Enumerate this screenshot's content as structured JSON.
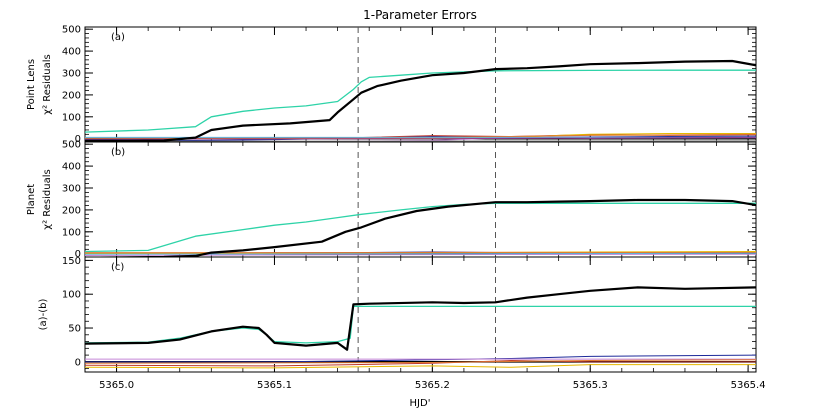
{
  "figure": {
    "title": "1-Parameter Errors",
    "xlabel": "HJD'",
    "x_ticks": [
      "5365.0",
      "5365.1",
      "5365.2",
      "5365.3",
      "5365.4"
    ],
    "x_tick_values": [
      5365.0,
      5365.1,
      5365.2,
      5365.3,
      5365.4
    ],
    "xlim": [
      5364.98,
      5365.405
    ],
    "vlines": [
      5365.153,
      5365.24
    ],
    "colors": {
      "chi2_total": "#000000",
      "chi2_reference": "#2ed3a8",
      "minor_series": [
        "#1d2a9a",
        "#c0392b",
        "#e6b800",
        "#c586d6",
        "#e07a30",
        "#5fb0d8",
        "#8e3a8e",
        "#7a7a7a"
      ]
    }
  },
  "chart_data": [
    {
      "type": "line",
      "panel": "(a)",
      "ylabel_line1": "Point Lens",
      "ylabel_line2": "χ² Residuals",
      "ylim": [
        -15,
        510
      ],
      "yticks": [
        0,
        100,
        200,
        300,
        400,
        500
      ],
      "ytick_labels": [
        "0",
        "100",
        "200",
        "300",
        "400",
        "500"
      ],
      "minor_ytick_step": 20,
      "series": [
        {
          "role": "chi2_reference",
          "x": [
            5364.98,
            5365.02,
            5365.05,
            5365.06,
            5365.08,
            5365.1,
            5365.12,
            5365.14,
            5365.15,
            5365.155,
            5365.16,
            5365.18,
            5365.2,
            5365.22,
            5365.24,
            5365.3,
            5365.35,
            5365.405
          ],
          "y": [
            30,
            40,
            55,
            100,
            125,
            140,
            150,
            170,
            225,
            260,
            280,
            290,
            300,
            305,
            310,
            312,
            313,
            313
          ]
        },
        {
          "role": "chi2_total",
          "x": [
            5364.98,
            5365.03,
            5365.05,
            5365.06,
            5365.08,
            5365.11,
            5365.135,
            5365.14,
            5365.15,
            5365.155,
            5365.165,
            5365.18,
            5365.2,
            5365.22,
            5365.24,
            5365.26,
            5365.28,
            5365.3,
            5365.33,
            5365.36,
            5365.39,
            5365.405
          ],
          "y": [
            -10,
            -8,
            5,
            40,
            60,
            70,
            85,
            120,
            180,
            210,
            240,
            265,
            290,
            300,
            318,
            322,
            330,
            340,
            345,
            352,
            355,
            335
          ]
        },
        {
          "role": "minor",
          "x": [
            5364.98,
            5365.05,
            5365.1,
            5365.15,
            5365.2,
            5365.25,
            5365.3,
            5365.35,
            5365.405
          ],
          "y": [
            -5,
            -8,
            -4,
            2,
            10,
            5,
            8,
            10,
            12
          ]
        },
        {
          "role": "minor",
          "x": [
            5364.98,
            5365.05,
            5365.1,
            5365.15,
            5365.2,
            5365.25,
            5365.3,
            5365.35,
            5365.405
          ],
          "y": [
            0,
            1,
            2,
            4,
            14,
            10,
            18,
            15,
            18
          ]
        },
        {
          "role": "minor",
          "x": [
            5364.98,
            5365.1,
            5365.2,
            5365.25,
            5365.28,
            5365.3,
            5365.35,
            5365.405
          ],
          "y": [
            0,
            0,
            2,
            4,
            15,
            20,
            24,
            24
          ]
        },
        {
          "role": "minor",
          "x": [
            5364.98,
            5365.1,
            5365.15,
            5365.2,
            5365.25,
            5365.3,
            5365.405
          ],
          "y": [
            -15,
            -15,
            -12,
            -8,
            5,
            2,
            4
          ]
        },
        {
          "role": "minor",
          "x": [
            5364.98,
            5365.1,
            5365.2,
            5365.25,
            5365.3,
            5365.405
          ],
          "y": [
            0,
            0,
            5,
            10,
            15,
            20
          ]
        },
        {
          "role": "minor",
          "x": [
            5364.98,
            5365.405
          ],
          "y": [
            6,
            6
          ]
        },
        {
          "role": "minor",
          "x": [
            5364.98,
            5365.2,
            5365.3,
            5365.405
          ],
          "y": [
            -2,
            0,
            3,
            6
          ]
        },
        {
          "role": "minor",
          "x": [
            5364.98,
            5365.405
          ],
          "y": [
            -12,
            -10
          ]
        }
      ]
    },
    {
      "type": "line",
      "panel": "(b)",
      "ylabel_line1": "Planet",
      "ylabel_line2": "χ² Residuals",
      "ylim": [
        -15,
        510
      ],
      "yticks": [
        0,
        100,
        200,
        300,
        400,
        500
      ],
      "ytick_labels": [
        "0",
        "100",
        "200",
        "300",
        "400",
        "500"
      ],
      "minor_ytick_step": 20,
      "series": [
        {
          "role": "chi2_reference",
          "x": [
            5364.98,
            5365.02,
            5365.05,
            5365.08,
            5365.1,
            5365.12,
            5365.14,
            5365.155,
            5365.18,
            5365.2,
            5365.22,
            5365.24,
            5365.3,
            5365.405
          ],
          "y": [
            10,
            15,
            80,
            110,
            130,
            145,
            165,
            180,
            200,
            215,
            225,
            230,
            230,
            230
          ]
        },
        {
          "role": "chi2_total",
          "x": [
            5364.98,
            5365.03,
            5365.05,
            5365.06,
            5365.08,
            5365.1,
            5365.13,
            5365.145,
            5365.155,
            5365.17,
            5365.19,
            5365.21,
            5365.24,
            5365.26,
            5365.28,
            5365.3,
            5365.33,
            5365.36,
            5365.39,
            5365.405
          ],
          "y": [
            -18,
            -15,
            -10,
            5,
            15,
            30,
            55,
            100,
            120,
            160,
            195,
            215,
            235,
            235,
            238,
            240,
            245,
            245,
            240,
            222
          ]
        },
        {
          "role": "minor",
          "x": [
            5364.98,
            5365.05,
            5365.1,
            5365.15,
            5365.2,
            5365.25,
            5365.3,
            5365.405
          ],
          "y": [
            0,
            2,
            4,
            5,
            8,
            5,
            3,
            4
          ]
        },
        {
          "role": "minor",
          "x": [
            5364.98,
            5365.1,
            5365.2,
            5365.3,
            5365.405
          ],
          "y": [
            0,
            2,
            6,
            6,
            8
          ]
        },
        {
          "role": "minor",
          "x": [
            5364.98,
            5365.2,
            5365.3,
            5365.405
          ],
          "y": [
            2,
            4,
            8,
            10
          ]
        },
        {
          "role": "minor",
          "x": [
            5364.98,
            5365.1,
            5365.2,
            5365.405
          ],
          "y": [
            -8,
            -6,
            -4,
            -2
          ]
        },
        {
          "role": "minor",
          "x": [
            5364.98,
            5365.405
          ],
          "y": [
            5,
            5
          ]
        },
        {
          "role": "minor",
          "x": [
            5364.98,
            5365.2,
            5365.405
          ],
          "y": [
            -2,
            0,
            2
          ]
        }
      ]
    },
    {
      "type": "line",
      "panel": "(c)",
      "ylabel_line1": "(a)-(b)",
      "ylabel_line2": "",
      "ylim": [
        -15,
        155
      ],
      "yticks": [
        0,
        50,
        100,
        150
      ],
      "ytick_labels": [
        "0",
        "50",
        "100",
        "150"
      ],
      "minor_ytick_step": 10,
      "series": [
        {
          "role": "chi2_reference",
          "x": [
            5364.98,
            5365.02,
            5365.04,
            5365.06,
            5365.08,
            5365.09,
            5365.095,
            5365.1,
            5365.12,
            5365.14,
            5365.148,
            5365.15,
            5365.405
          ],
          "y": [
            28,
            29,
            35,
            45,
            50,
            48,
            40,
            30,
            28,
            30,
            35,
            82,
            82
          ]
        },
        {
          "role": "chi2_total",
          "x": [
            5364.98,
            5365.02,
            5365.04,
            5365.06,
            5365.08,
            5365.09,
            5365.095,
            5365.1,
            5365.12,
            5365.14,
            5365.146,
            5365.15,
            5365.16,
            5365.2,
            5365.22,
            5365.24,
            5365.26,
            5365.28,
            5365.3,
            5365.33,
            5365.36,
            5365.405
          ],
          "y": [
            27,
            28,
            33,
            45,
            52,
            50,
            40,
            28,
            24,
            28,
            18,
            85,
            86,
            88,
            87,
            88,
            95,
            100,
            105,
            110,
            108,
            110
          ]
        },
        {
          "role": "minor",
          "x": [
            5364.98,
            5365.1,
            5365.2,
            5365.25,
            5365.3,
            5365.405
          ],
          "y": [
            0,
            0,
            3,
            5,
            8,
            10
          ]
        },
        {
          "role": "minor",
          "x": [
            5364.98,
            5365.1,
            5365.15,
            5365.2,
            5365.25,
            5365.3,
            5365.405
          ],
          "y": [
            -5,
            -6,
            -4,
            -2,
            2,
            0,
            0
          ]
        },
        {
          "role": "minor",
          "x": [
            5364.98,
            5365.1,
            5365.2,
            5365.25,
            5365.3,
            5365.405
          ],
          "y": [
            -8,
            -9,
            -6,
            -8,
            -4,
            -4
          ]
        },
        {
          "role": "minor",
          "x": [
            5364.98,
            5365.405
          ],
          "y": [
            4,
            4
          ]
        },
        {
          "role": "minor",
          "x": [
            5364.98,
            5365.2,
            5365.3,
            5365.405
          ],
          "y": [
            -2,
            -1,
            2,
            3
          ]
        }
      ]
    }
  ]
}
